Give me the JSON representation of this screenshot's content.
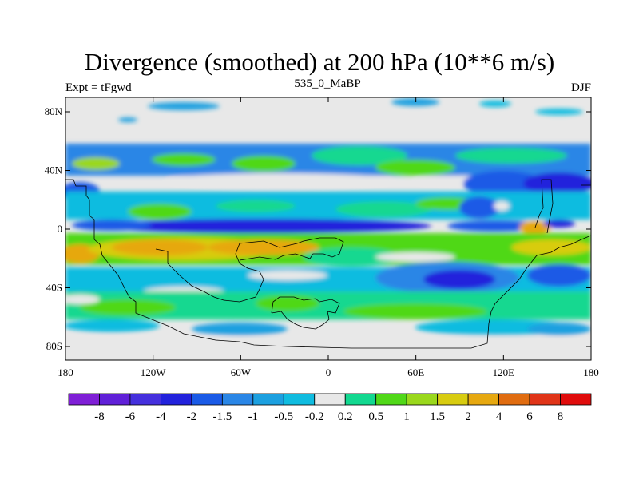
{
  "title": "Divergence (smoothed) at 200 hPa (10**6 m/s)",
  "left_label": "Expt = tFgwd",
  "center_label": "535_0_MaBP",
  "right_label": "DJF",
  "chart_data": {
    "type": "heatmap",
    "field": "200 hPa smoothed divergence",
    "x_axis": {
      "range": [
        -180,
        180
      ],
      "tick_labels": [
        "180",
        "120W",
        "60W",
        "0",
        "60E",
        "120E",
        "180"
      ]
    },
    "y_axis": {
      "range": [
        -90,
        90
      ],
      "tick_labels": [
        "80N",
        "40N",
        "0",
        "40S",
        "80S"
      ]
    },
    "colorbar": {
      "levels": [
        "-8",
        "-6",
        "-4",
        "-2",
        "-1.5",
        "-1",
        "-0.5",
        "-0.2",
        "0.2",
        "0.5",
        "1",
        "1.5",
        "2",
        "4",
        "6",
        "8"
      ],
      "colors": [
        "#7f1fd6",
        "#6020d8",
        "#4530dd",
        "#2222dc",
        "#1a5ae6",
        "#2a86e6",
        "#1ca0e0",
        "#10bce0",
        "#e8e8e8",
        "#12d890",
        "#50d818",
        "#9ad81c",
        "#d8cc10",
        "#e6a810",
        "#e06c10",
        "#e03418",
        "#e00c0c"
      ]
    }
  }
}
